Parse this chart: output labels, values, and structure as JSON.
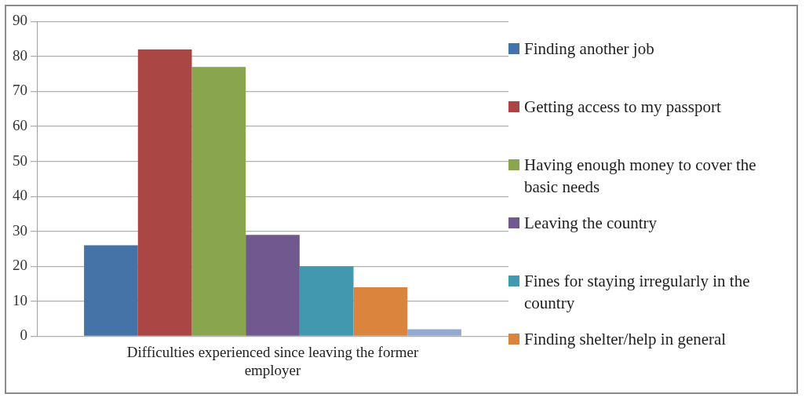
{
  "chart_data": {
    "type": "bar",
    "categories": [
      "Difficulties experienced since leaving the former employer"
    ],
    "series": [
      {
        "name": "Finding another job",
        "color": "#4572a7",
        "values": [
          26
        ]
      },
      {
        "name": "Getting access to my passport",
        "color": "#aa4643",
        "values": [
          82
        ]
      },
      {
        "name": "Having enough money to cover the basic needs",
        "color": "#89a54e",
        "values": [
          77
        ]
      },
      {
        "name": "Leaving the country",
        "color": "#71588f",
        "values": [
          29
        ]
      },
      {
        "name": "Fines for staying irregularly in the country",
        "color": "#4198af",
        "values": [
          20
        ]
      },
      {
        "name": "Finding shelter/help in general",
        "color": "#db843d",
        "values": [
          14
        ]
      },
      {
        "color": "#93a9cf",
        "values": [
          2
        ]
      }
    ],
    "ylim": [
      0,
      90
    ],
    "yticks": [
      0,
      10,
      20,
      30,
      40,
      50,
      60,
      70,
      80,
      90
    ],
    "grid": "y",
    "legend": "right"
  }
}
